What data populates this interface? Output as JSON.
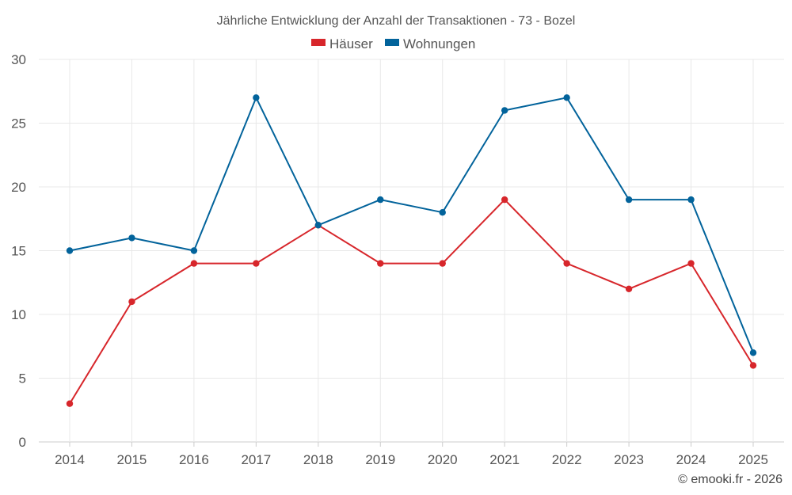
{
  "chart_data": {
    "type": "line",
    "title": "Jährliche Entwicklung der Anzahl der Transaktionen - 73 - Bozel",
    "categories": [
      "2014",
      "2015",
      "2016",
      "2017",
      "2018",
      "2019",
      "2020",
      "2021",
      "2022",
      "2023",
      "2024",
      "2025"
    ],
    "series": [
      {
        "name": "Häuser",
        "color": "#d7262b",
        "values": [
          3,
          11,
          14,
          14,
          17,
          14,
          14,
          19,
          14,
          12,
          14,
          6
        ]
      },
      {
        "name": "Wohnungen",
        "color": "#02639b",
        "values": [
          15,
          16,
          15,
          27,
          17,
          19,
          18,
          26,
          27,
          19,
          19,
          7
        ]
      }
    ],
    "ylim": [
      0,
      30
    ],
    "yticks": [
      0,
      5,
      10,
      15,
      20,
      25,
      30
    ],
    "xlabel": "",
    "ylabel": "",
    "grid": true,
    "legend": "top-center"
  },
  "credit": "© emooki.fr - 2026"
}
